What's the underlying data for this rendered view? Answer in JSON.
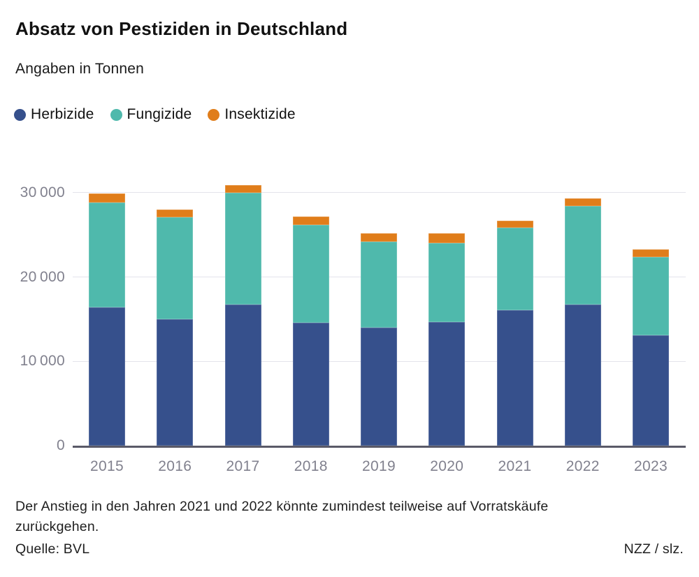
{
  "header": {
    "title": "Absatz von Pestiziden in Deutschland",
    "subtitle": "Angaben in Tonnen"
  },
  "chart_data": {
    "type": "bar",
    "stacked": true,
    "title": "Absatz von Pestiziden in Deutschland",
    "subtitle": "Angaben in Tonnen",
    "unit": "Tonnen",
    "categories": [
      "2015",
      "2016",
      "2017",
      "2018",
      "2019",
      "2020",
      "2021",
      "2022",
      "2023"
    ],
    "series": [
      {
        "key": "herbizide",
        "name": "Herbizide",
        "color": "#36508C",
        "values": [
          16400,
          15000,
          16700,
          14600,
          14000,
          14700,
          16100,
          16700,
          13100
        ]
      },
      {
        "key": "fungizide",
        "name": "Fungizide",
        "color": "#4FB9AC",
        "values": [
          12400,
          12100,
          13300,
          11600,
          10200,
          9300,
          9700,
          11700,
          9300
        ]
      },
      {
        "key": "insektizide",
        "name": "Insektizide",
        "color": "#E07D1A",
        "values": [
          1100,
          900,
          900,
          1000,
          1000,
          1200,
          900,
          900,
          900
        ]
      }
    ],
    "totals": [
      29900,
      28000,
      30900,
      27200,
      25200,
      25200,
      26700,
      29300,
      23300
    ],
    "yticks": [
      {
        "value": 30000,
        "label": "30 000"
      },
      {
        "value": 20000,
        "label": "20 000"
      },
      {
        "value": 10000,
        "label": "10 000"
      },
      {
        "value": 0,
        "label": "0"
      }
    ],
    "ylim": [
      0,
      31000
    ],
    "grid": "horizontal",
    "legend_position": "top"
  },
  "footer": {
    "note_line1": "Der Anstieg in den Jahren 2021 und 2022 könnte zumindest teilweise auf Vorratskäufe",
    "note_line2": "zurückgehen.",
    "source": "Quelle: BVL",
    "credit": "NZZ / slz."
  }
}
